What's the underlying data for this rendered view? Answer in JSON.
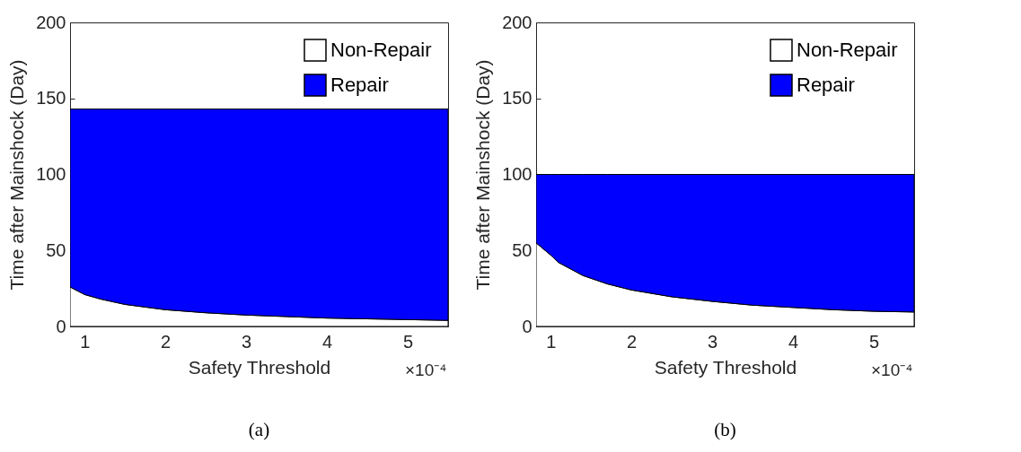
{
  "chart_data": [
    {
      "type": "area",
      "stacked": true,
      "xlabel": "Safety Threshold",
      "ylabel": "Time after Mainshock (Day)",
      "x": [
        0.82,
        1,
        1.2,
        1.5,
        2,
        2.5,
        3,
        3.5,
        4,
        4.5,
        5,
        5.5
      ],
      "series": [
        {
          "name": "Non-Repair",
          "color": "#ffffff",
          "values": [
            26,
            21,
            18,
            14.5,
            11,
            9,
            7.5,
            6.5,
            5.5,
            5,
            4.5,
            4
          ]
        },
        {
          "name": "Repair",
          "color": "#0000ff",
          "values": [
            117,
            122,
            125,
            128.5,
            132,
            134,
            135.5,
            136.5,
            137.5,
            138,
            138.5,
            139
          ]
        }
      ],
      "xlim": [
        0.82,
        5.5
      ],
      "xticks": [
        1,
        2,
        3,
        4,
        5
      ],
      "ylim": [
        0,
        200
      ],
      "yticks": [
        0,
        50,
        100,
        150,
        200
      ],
      "grid": false,
      "legend": "top right",
      "annotations": [
        "×10⁻⁴",
        "(a)"
      ]
    },
    {
      "type": "area",
      "stacked": true,
      "xlabel": "Safety Threshold",
      "ylabel": "Time after Mainshock (Day)",
      "x": [
        0.82,
        1,
        1.1,
        1.4,
        1.7,
        2,
        2.5,
        3,
        3.5,
        4,
        4.5,
        5,
        5.5
      ],
      "series": [
        {
          "name": "Non-Repair",
          "color": "#ffffff",
          "values": [
            55,
            47,
            42,
            33.5,
            28,
            24,
            19.5,
            16.5,
            14,
            12.5,
            11,
            10,
            9.5
          ]
        },
        {
          "name": "Repair",
          "color": "#0000ff",
          "values": [
            45,
            53,
            58,
            66.5,
            72,
            76,
            80.5,
            83.5,
            86,
            87.5,
            89,
            90,
            90.5
          ]
        }
      ],
      "xlim": [
        0.82,
        5.5
      ],
      "xticks": [
        1,
        2,
        3,
        4,
        5
      ],
      "ylim": [
        0,
        200
      ],
      "yticks": [
        0,
        50,
        100,
        150,
        200
      ],
      "grid": false,
      "legend": "top right",
      "annotations": [
        "×10⁻⁴",
        "(b)"
      ]
    }
  ]
}
